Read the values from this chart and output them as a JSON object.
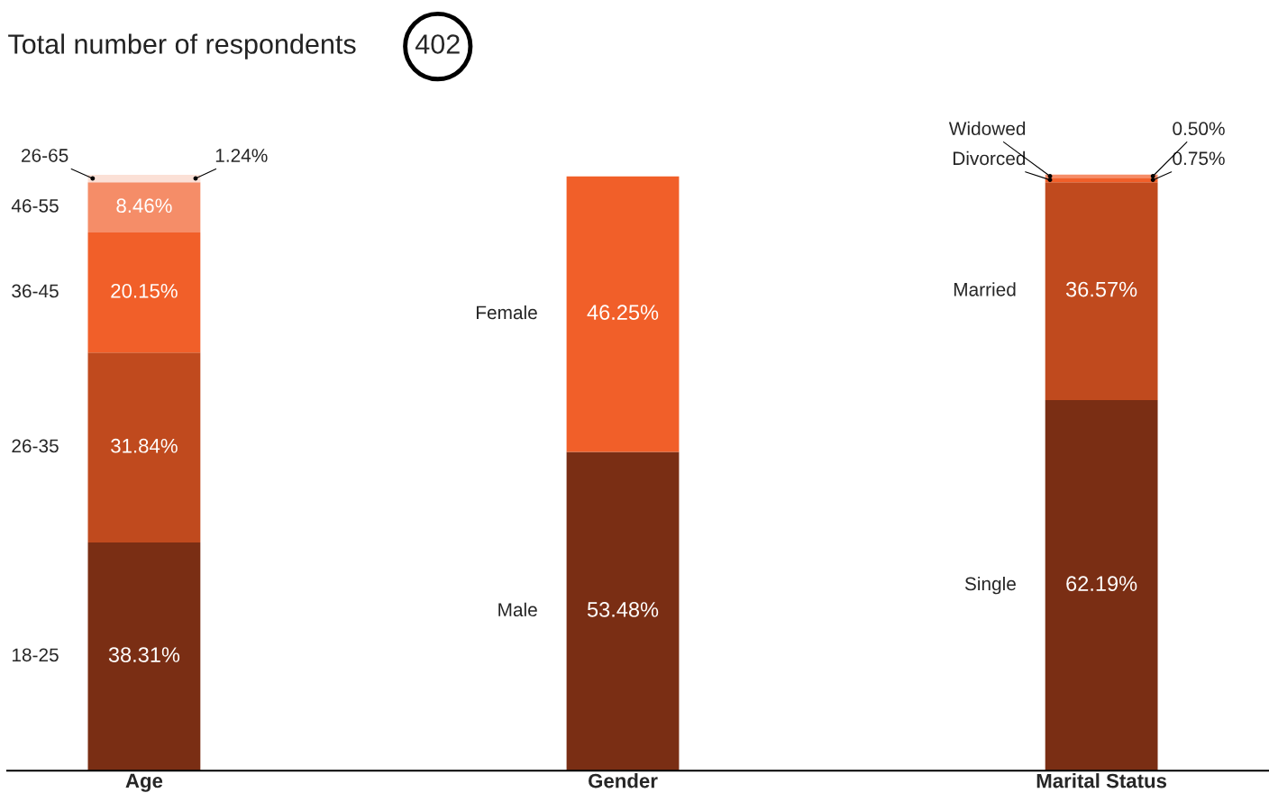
{
  "chart_data": {
    "type": "bar",
    "stacked": true,
    "title": "Total number of respondents",
    "annotations": [
      "402"
    ],
    "categories": [
      "Age",
      "Gender",
      "Marital Status"
    ],
    "series": [
      {
        "name": "18-25",
        "color": "#7a2e14",
        "values": [
          38.31,
          null,
          null
        ],
        "value_labels": [
          "38.31%",
          null,
          null
        ]
      },
      {
        "name": "26-35",
        "color": "#c04a1e",
        "values": [
          31.84,
          null,
          null
        ],
        "value_labels": [
          "31.84%",
          null,
          null
        ]
      },
      {
        "name": "36-45",
        "color": "#f15f29",
        "values": [
          20.15,
          null,
          null
        ],
        "value_labels": [
          "20.15%",
          null,
          null
        ]
      },
      {
        "name": "46-55",
        "color": "#f58d68",
        "values": [
          8.46,
          null,
          null
        ],
        "value_labels": [
          "8.46%",
          null,
          null
        ]
      },
      {
        "name": "26-65",
        "color": "#fbe0d6",
        "values": [
          1.24,
          null,
          null
        ],
        "value_labels": [
          "1.24%",
          null,
          null
        ]
      },
      {
        "name": "Male",
        "color": "#7a2e14",
        "values": [
          null,
          53.48,
          null
        ],
        "value_labels": [
          null,
          "53.48%",
          null
        ]
      },
      {
        "name": "Female",
        "color": "#f15f29",
        "values": [
          null,
          46.25,
          null
        ],
        "value_labels": [
          null,
          "46.25%",
          null
        ]
      },
      {
        "name": "Single",
        "color": "#7a2e14",
        "values": [
          null,
          null,
          62.19
        ],
        "value_labels": [
          null,
          null,
          "62.19%"
        ]
      },
      {
        "name": "Married",
        "color": "#c04a1e",
        "values": [
          null,
          null,
          36.57
        ],
        "value_labels": [
          null,
          null,
          "36.57%"
        ]
      },
      {
        "name": "Divorced",
        "color": "#f15f29",
        "values": [
          null,
          null,
          0.75
        ],
        "value_labels": [
          null,
          null,
          "0.75%"
        ]
      },
      {
        "name": "Widowed",
        "color": "#f58d68",
        "values": [
          null,
          null,
          0.5
        ],
        "value_labels": [
          null,
          null,
          "0.50%"
        ]
      }
    ],
    "legend": false,
    "grid": false
  }
}
